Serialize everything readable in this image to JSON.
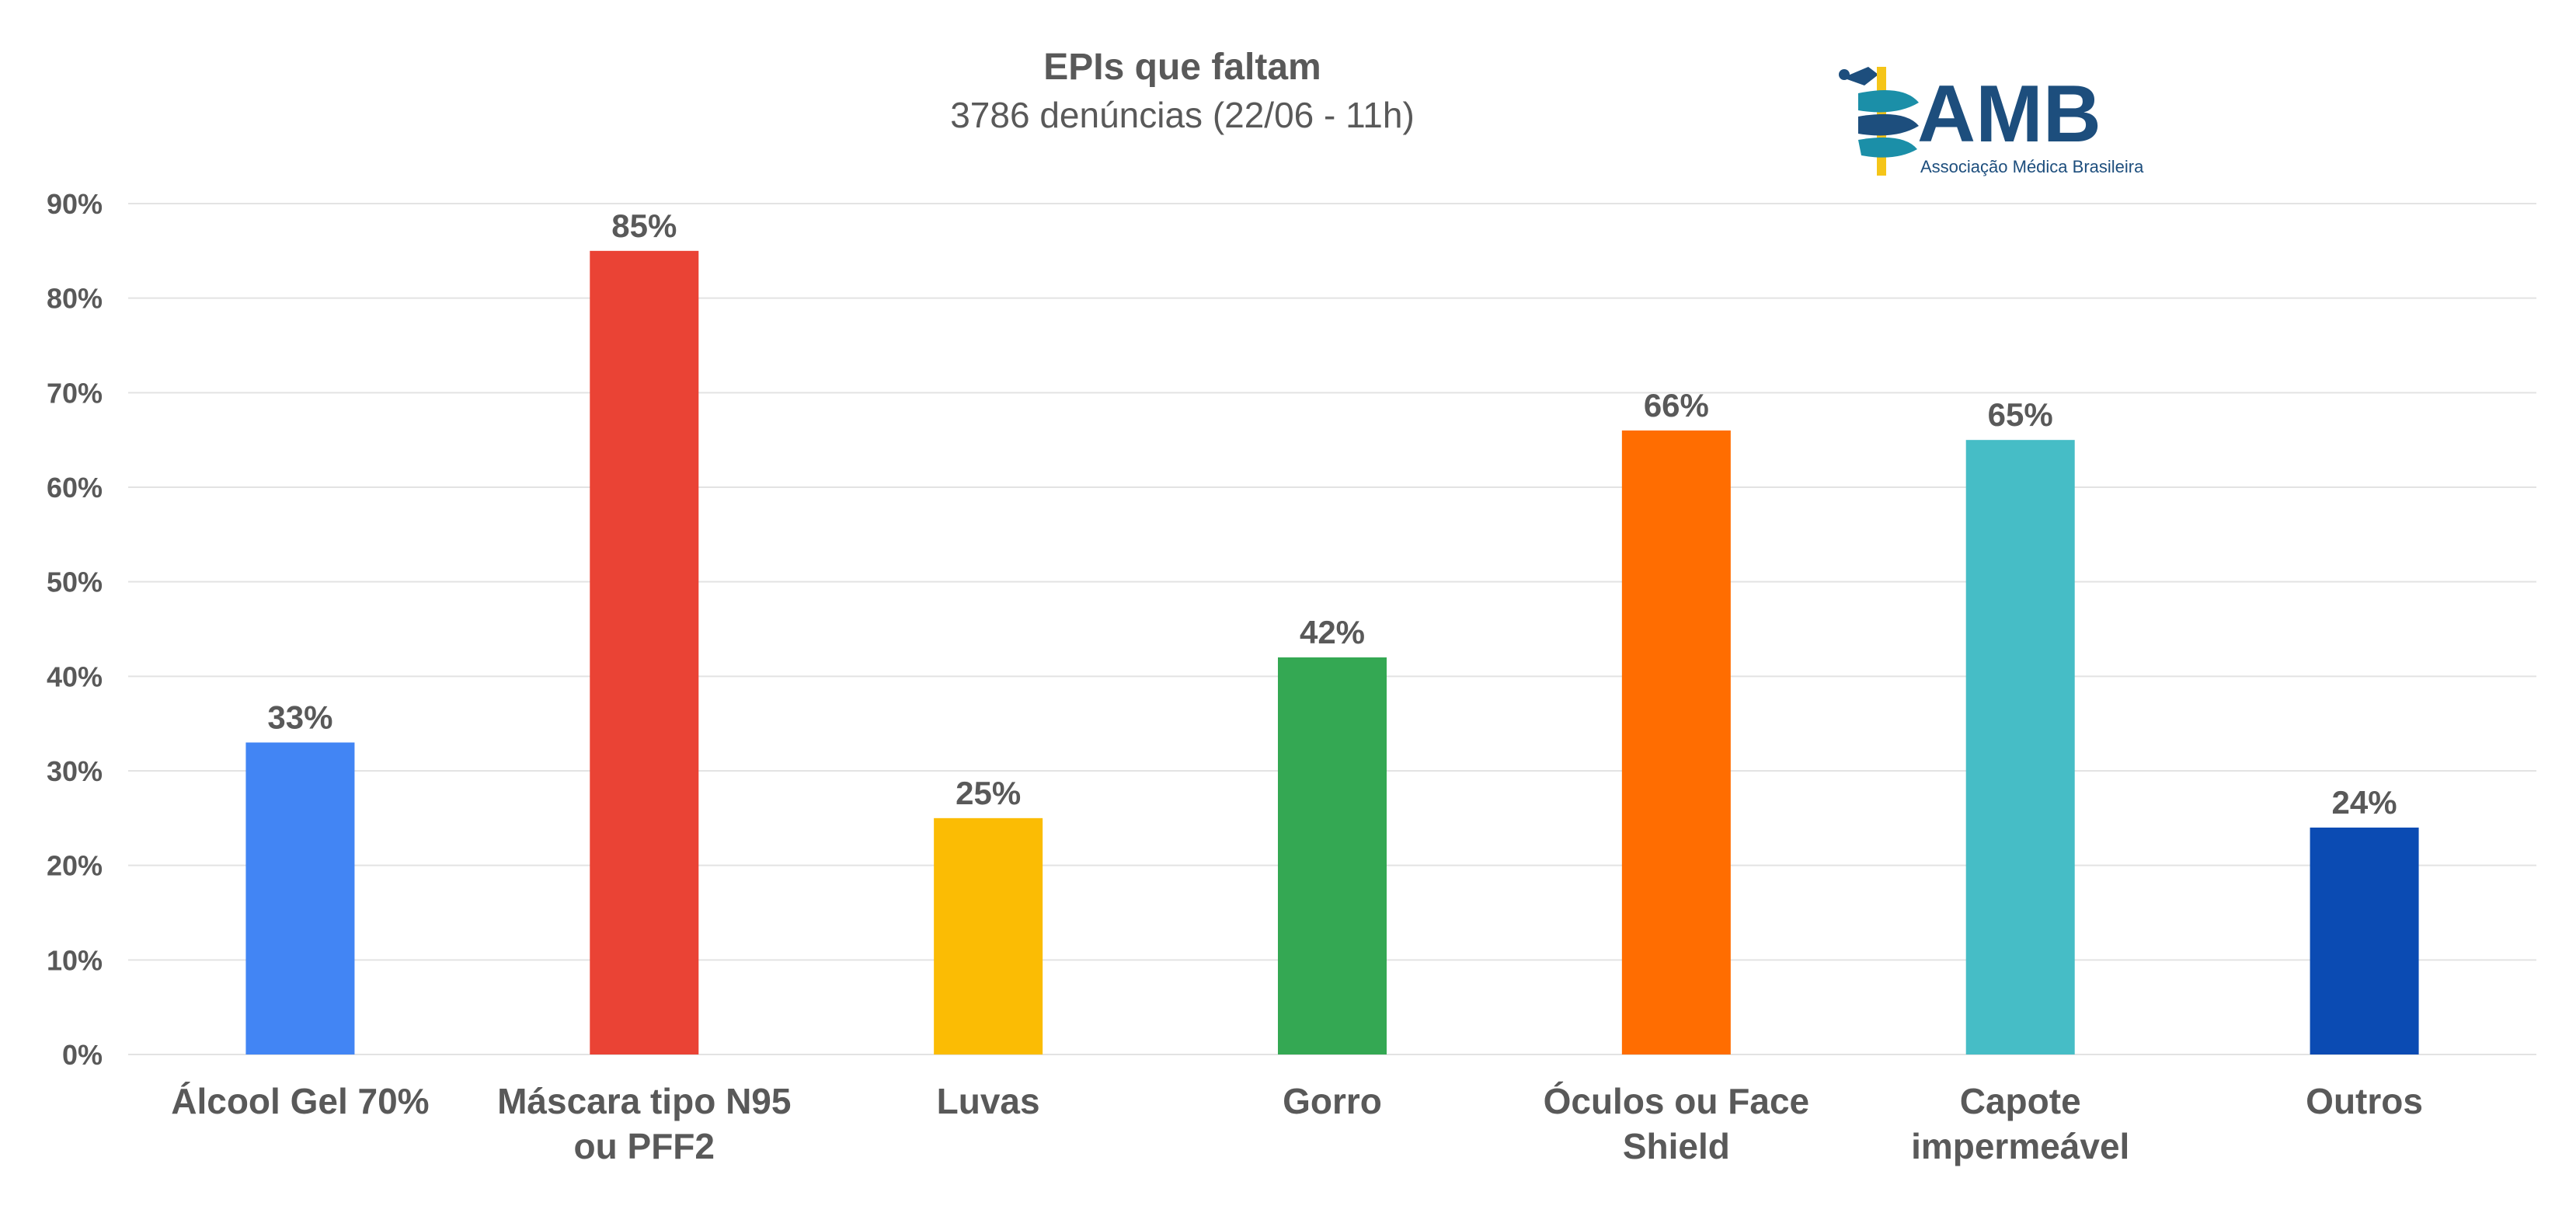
{
  "chart_data": {
    "type": "bar",
    "title": "EPIs que faltam",
    "subtitle": "3786 denúncias (22/06 - 11h)",
    "categories": [
      [
        "Álcool Gel 70%"
      ],
      [
        "Máscara tipo N95",
        "ou PFF2"
      ],
      [
        "Luvas"
      ],
      [
        "Gorro"
      ],
      [
        "Óculos ou Face",
        "Shield"
      ],
      [
        "Capote",
        "impermeável"
      ],
      [
        "Outros"
      ]
    ],
    "values": [
      33,
      85,
      25,
      42,
      66,
      65,
      24
    ],
    "value_labels": [
      "33%",
      "85%",
      "25%",
      "42%",
      "66%",
      "65%",
      "24%"
    ],
    "colors": [
      "#4285F4",
      "#EA4335",
      "#FBBC04",
      "#34A853",
      "#FF6D01",
      "#46BDC6",
      "#0B4BB3"
    ],
    "ylim": [
      0,
      90
    ],
    "yticks": [
      0,
      10,
      20,
      30,
      40,
      50,
      60,
      70,
      80,
      90
    ],
    "ytick_labels": [
      "0%",
      "10%",
      "20%",
      "30%",
      "40%",
      "50%",
      "60%",
      "70%",
      "80%",
      "90%"
    ],
    "grid": true,
    "legend": "none"
  },
  "logo": {
    "name": "AMB",
    "tagline": "Associação Médica Brasileira",
    "colors": {
      "teal": "#1B8FA8",
      "navy": "#1D4E7D",
      "yellow": "#F5C518"
    }
  },
  "colors": {
    "text_dark": "#595959",
    "grid": "#E3E3E3"
  }
}
